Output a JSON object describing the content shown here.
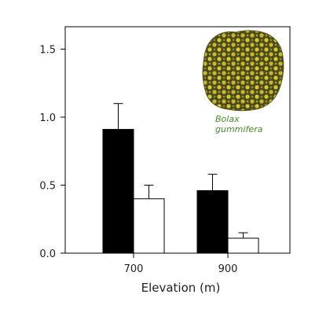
{
  "chart_data": {
    "type": "bar",
    "xlabel": "Elevation (m)",
    "ylabel": "",
    "categories": [
      "700",
      "900"
    ],
    "series": [
      {
        "values": [
          0.91,
          0.46
        ],
        "errors": [
          0.19,
          0.12
        ],
        "color": "#000000"
      },
      {
        "values": [
          0.4,
          0.11
        ],
        "errors": [
          0.1,
          0.04
        ],
        "color": "#ffffff"
      }
    ],
    "ylim": [
      0,
      1.65
    ],
    "yticks": [
      0.0,
      0.5,
      1.0,
      1.5
    ],
    "ytick_labels": [
      "0.0",
      "0.5",
      "1.0",
      "1.5"
    ],
    "annotation": {
      "line1": "Bolax",
      "line2": "gummifera",
      "color": "#4a8a2a"
    },
    "grid": false,
    "legend": "none"
  }
}
